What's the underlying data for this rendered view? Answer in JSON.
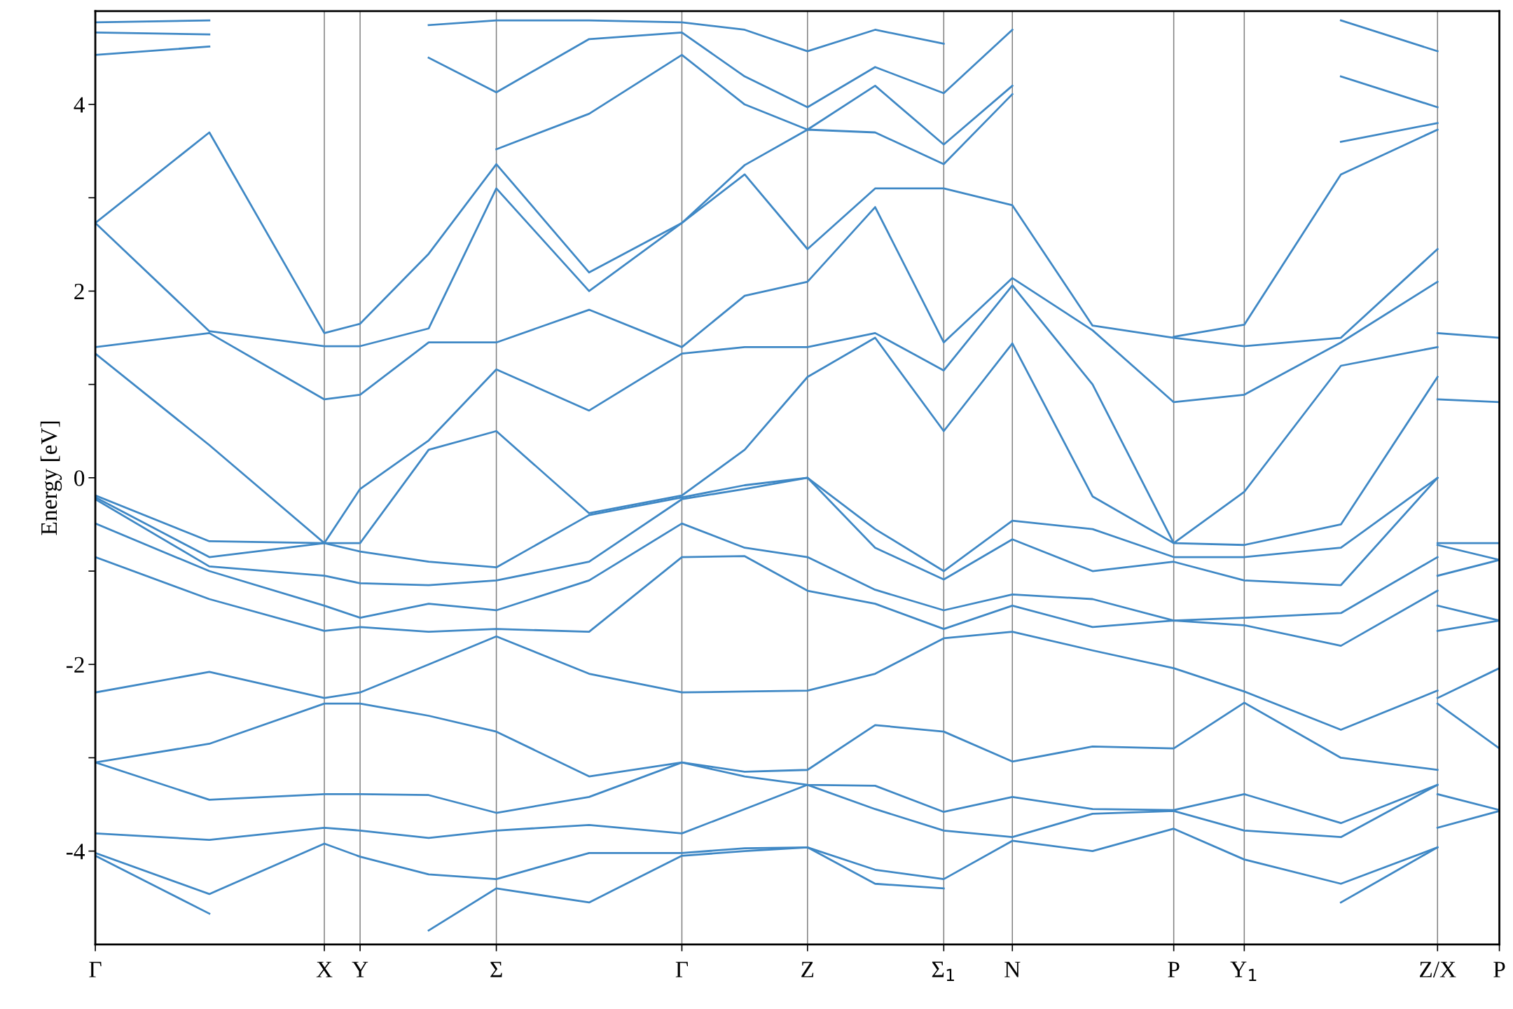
{
  "chart_data": {
    "type": "line",
    "ylabel": "Energy [eV]",
    "x": [
      0,
      0.118,
      0.237,
      0.274,
      0.345,
      0.415,
      0.511,
      0.607,
      0.672,
      0.737,
      0.807,
      0.878,
      0.949,
      1.032,
      1.116,
      1.189,
      1.289,
      1.389,
      1.453
    ],
    "xlim": [
      0,
      1.453
    ],
    "xticks": [
      {
        "value": 0,
        "label": "Γ"
      },
      {
        "value": 0.237,
        "label": "X"
      },
      {
        "value": 0.274,
        "label": "Y"
      },
      {
        "value": 0.415,
        "label": "Σ"
      },
      {
        "value": 0.607,
        "label": "Γ"
      },
      {
        "value": 0.737,
        "label": "Z"
      },
      {
        "value": 0.878,
        "label": "Σ$_{1}$"
      },
      {
        "value": 0.949,
        "label": "N"
      },
      {
        "value": 1.116,
        "label": "P"
      },
      {
        "value": 1.189,
        "label": "Y$_{1}$"
      },
      {
        "value": 1.389,
        "label": "Z/X"
      },
      {
        "value": 1.453,
        "label": "P"
      }
    ],
    "ylim": [
      -5,
      5
    ],
    "yticks": [
      -4,
      {
        "value": -3,
        "label": null
      },
      -2,
      {
        "value": -1,
        "label": null
      },
      0,
      {
        "value": 1,
        "label": null
      },
      2,
      {
        "value": 3,
        "label": null
      },
      4
    ],
    "grid": false,
    "marker": "none",
    "line_style": "solid",
    "ref_lines": [
      {
        "axis": "x",
        "value": 0.237,
        "color": "#808080"
      },
      {
        "axis": "x",
        "value": 0.274,
        "color": "#808080"
      },
      {
        "axis": "x",
        "value": 0.415,
        "color": "#808080"
      },
      {
        "axis": "x",
        "value": 0.607,
        "color": "#808080"
      },
      {
        "axis": "x",
        "value": 0.737,
        "color": "#808080"
      },
      {
        "axis": "x",
        "value": 0.878,
        "color": "#808080"
      },
      {
        "axis": "x",
        "value": 0.949,
        "color": "#808080"
      },
      {
        "axis": "x",
        "value": 1.116,
        "color": "#808080"
      },
      {
        "axis": "x",
        "value": 1.189,
        "color": "#808080"
      },
      {
        "axis": "x",
        "value": 1.389,
        "color": "#808080"
      }
    ],
    "series": [
      {
        "color": "#3f88c5",
        "values": [
          -4.05,
          -4.67,
          null,
          null,
          -4.85,
          -4.4,
          -4.55,
          -4.05,
          -4.0,
          -3.96,
          -4.35,
          -4.4,
          null,
          null,
          null,
          null,
          -4.55,
          -3.96,
          null
        ]
      },
      {
        "color": "#3f88c5",
        "values": [
          -4.02,
          -4.46,
          -3.92,
          -4.06,
          -4.25,
          -4.3,
          -4.02,
          -4.02,
          -3.97,
          -3.96,
          -4.2,
          -4.3,
          -3.89,
          -4.0,
          -3.76,
          -4.09,
          -4.35,
          -3.96,
          null
        ]
      },
      {
        "color": "#3f88c5",
        "values": [
          -3.81,
          -3.88,
          -3.75,
          -3.78,
          -3.86,
          -3.78,
          -3.72,
          -3.81,
          -3.55,
          -3.29,
          -3.55,
          -3.78,
          -3.85,
          -3.6,
          -3.57,
          -3.78,
          -3.85,
          -3.29,
          null
        ]
      },
      {
        "color": "#3f88c5",
        "values": [
          -3.05,
          -3.45,
          -3.39,
          -3.39,
          -3.4,
          -3.59,
          -3.42,
          -3.05,
          -3.2,
          -3.29,
          -3.3,
          -3.58,
          -3.42,
          -3.55,
          -3.56,
          -3.39,
          -3.7,
          -3.29,
          null
        ]
      },
      {
        "color": "#3f88c5",
        "values": [
          -3.05,
          -2.85,
          -2.42,
          -2.42,
          -2.55,
          -2.72,
          -3.2,
          -3.05,
          -3.15,
          -3.13,
          -2.65,
          -2.72,
          -3.04,
          -2.88,
          -2.9,
          -2.41,
          -3.0,
          -3.13,
          null
        ]
      },
      {
        "color": "#3f88c5",
        "values": [
          -2.3,
          -2.08,
          -2.36,
          -2.3,
          -2.0,
          -1.7,
          -2.1,
          -2.3,
          -2.29,
          -2.28,
          -2.1,
          -1.72,
          -1.65,
          -1.85,
          -2.04,
          -2.29,
          -2.7,
          -2.28,
          null
        ]
      },
      {
        "color": "#3f88c5",
        "values": [
          -0.85,
          -1.3,
          -1.64,
          -1.6,
          -1.65,
          -1.62,
          -1.65,
          -0.85,
          -0.84,
          -1.21,
          -1.35,
          -1.62,
          -1.37,
          -1.6,
          -1.53,
          -1.58,
          -1.8,
          -1.21,
          null
        ]
      },
      {
        "color": "#3f88c5",
        "values": [
          -0.49,
          -1.0,
          -1.37,
          -1.5,
          -1.35,
          -1.42,
          -1.1,
          -0.49,
          -0.75,
          -0.85,
          -1.2,
          -1.42,
          -1.25,
          -1.3,
          -1.53,
          -1.5,
          -1.45,
          -0.85,
          null
        ]
      },
      {
        "color": "#3f88c5",
        "values": [
          -0.23,
          -0.95,
          -1.05,
          -1.13,
          -1.15,
          -1.1,
          -0.9,
          -0.23,
          -0.12,
          0.0,
          -0.75,
          -1.09,
          -0.66,
          -1.0,
          -0.9,
          -1.1,
          -1.15,
          0.0,
          null
        ]
      },
      {
        "color": "#3f88c5",
        "values": [
          -0.21,
          -0.85,
          -0.7,
          -0.79,
          -0.9,
          -0.96,
          -0.4,
          -0.21,
          -0.08,
          0.0,
          -0.55,
          -1.0,
          -0.46,
          -0.55,
          -0.85,
          -0.85,
          -0.75,
          0.0,
          null
        ]
      },
      {
        "color": "#3f88c5",
        "values": [
          -0.19,
          -0.68,
          -0.7,
          -0.7,
          0.3,
          0.5,
          -0.38,
          -0.19,
          0.3,
          1.08,
          1.5,
          0.5,
          1.44,
          -0.2,
          -0.7,
          -0.72,
          -0.5,
          1.08,
          null
        ]
      },
      {
        "color": "#3f88c5",
        "values": [
          1.33,
          0.35,
          -0.7,
          -0.12,
          0.4,
          1.16,
          0.72,
          1.33,
          1.4,
          1.4,
          1.55,
          1.15,
          2.06,
          1.0,
          -0.7,
          -0.15,
          1.2,
          1.4,
          null
        ]
      },
      {
        "color": "#3f88c5",
        "values": [
          1.4,
          1.55,
          0.84,
          0.89,
          1.45,
          1.45,
          1.8,
          1.4,
          1.95,
          2.1,
          2.9,
          1.45,
          2.14,
          1.58,
          0.81,
          0.89,
          1.45,
          2.1,
          null
        ]
      },
      {
        "color": "#3f88c5",
        "values": [
          2.73,
          1.57,
          1.41,
          1.41,
          1.6,
          3.1,
          2.0,
          2.73,
          3.25,
          2.45,
          3.1,
          3.1,
          2.92,
          1.63,
          1.5,
          1.41,
          1.5,
          2.45,
          null
        ]
      },
      {
        "color": "#3f88c5",
        "values": [
          2.73,
          3.7,
          1.55,
          1.65,
          2.4,
          3.36,
          2.2,
          2.73,
          3.35,
          3.73,
          3.7,
          3.36,
          4.11,
          null,
          1.51,
          1.64,
          3.25,
          3.73,
          null
        ]
      },
      {
        "color": "#3f88c5",
        "values": [
          4.53,
          4.62,
          null,
          null,
          null,
          3.52,
          3.9,
          4.53,
          4.0,
          3.73,
          4.2,
          3.57,
          4.2,
          null,
          null,
          null,
          3.6,
          3.8,
          null
        ]
      },
      {
        "color": "#3f88c5",
        "values": [
          4.77,
          4.75,
          null,
          null,
          4.5,
          4.13,
          4.7,
          4.77,
          4.3,
          3.97,
          4.4,
          4.12,
          4.8,
          null,
          null,
          null,
          4.3,
          3.97,
          null
        ]
      },
      {
        "color": "#3f88c5",
        "values": [
          4.88,
          4.9,
          null,
          null,
          4.85,
          4.9,
          4.9,
          4.88,
          4.8,
          4.57,
          4.8,
          4.65,
          null,
          null,
          null,
          null,
          4.9,
          4.57,
          null
        ]
      },
      {
        "color": "#3f88c5",
        "values": [
          null,
          null,
          null,
          null,
          null,
          null,
          null,
          null,
          null,
          null,
          null,
          null,
          null,
          null,
          null,
          null,
          null,
          -3.75,
          -3.57
        ]
      },
      {
        "color": "#3f88c5",
        "values": [
          null,
          null,
          null,
          null,
          null,
          null,
          null,
          null,
          null,
          null,
          null,
          null,
          null,
          null,
          null,
          null,
          null,
          -3.39,
          -3.56
        ]
      },
      {
        "color": "#3f88c5",
        "values": [
          null,
          null,
          null,
          null,
          null,
          null,
          null,
          null,
          null,
          null,
          null,
          null,
          null,
          null,
          null,
          null,
          null,
          -2.42,
          -2.9
        ]
      },
      {
        "color": "#3f88c5",
        "values": [
          null,
          null,
          null,
          null,
          null,
          null,
          null,
          null,
          null,
          null,
          null,
          null,
          null,
          null,
          null,
          null,
          null,
          -2.36,
          -2.04
        ]
      },
      {
        "color": "#3f88c5",
        "values": [
          null,
          null,
          null,
          null,
          null,
          null,
          null,
          null,
          null,
          null,
          null,
          null,
          null,
          null,
          null,
          null,
          null,
          -1.64,
          -1.53
        ]
      },
      {
        "color": "#3f88c5",
        "values": [
          null,
          null,
          null,
          null,
          null,
          null,
          null,
          null,
          null,
          null,
          null,
          null,
          null,
          null,
          null,
          null,
          null,
          -1.37,
          -1.53
        ]
      },
      {
        "color": "#3f88c5",
        "values": [
          null,
          null,
          null,
          null,
          null,
          null,
          null,
          null,
          null,
          null,
          null,
          null,
          null,
          null,
          null,
          null,
          null,
          -1.05,
          -0.88
        ]
      },
      {
        "color": "#3f88c5",
        "values": [
          null,
          null,
          null,
          null,
          null,
          null,
          null,
          null,
          null,
          null,
          null,
          null,
          null,
          null,
          null,
          null,
          null,
          -0.72,
          -0.88
        ]
      },
      {
        "color": "#3f88c5",
        "values": [
          null,
          null,
          null,
          null,
          null,
          null,
          null,
          null,
          null,
          null,
          null,
          null,
          null,
          null,
          null,
          null,
          null,
          -0.7,
          -0.7
        ]
      },
      {
        "color": "#3f88c5",
        "values": [
          null,
          null,
          null,
          null,
          null,
          null,
          null,
          null,
          null,
          null,
          null,
          null,
          null,
          null,
          null,
          null,
          null,
          0.84,
          0.81
        ]
      },
      {
        "color": "#3f88c5",
        "values": [
          null,
          null,
          null,
          null,
          null,
          null,
          null,
          null,
          null,
          null,
          null,
          null,
          null,
          null,
          null,
          null,
          null,
          1.55,
          1.5
        ]
      }
    ]
  }
}
